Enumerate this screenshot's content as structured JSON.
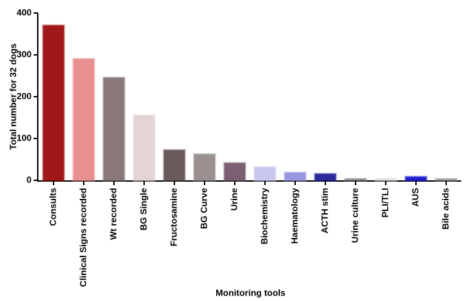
{
  "chart_data": {
    "type": "bar",
    "x_label": "Monitoring tools",
    "y_label": "Total number for 32 dogs",
    "categories": [
      "Consults",
      "Clinical Signs recorded",
      "Wt recorded",
      "BG Single",
      "Fructosamine",
      "BG Curve",
      "Urine",
      "Biochemistry",
      "Haematology",
      "ACTH stim",
      "Urine culture",
      "PLI/TLI",
      "AUS",
      "Bile acids"
    ],
    "values": [
      370,
      290,
      245,
      155,
      72,
      62,
      41,
      31,
      18,
      15,
      3,
      3,
      8,
      3
    ],
    "colors": [
      "#a01818",
      "#e89090",
      "#8a7878",
      "#e4d4d4",
      "#6a5a5a",
      "#9a9090",
      "#7a6070",
      "#c8c8f0",
      "#9898e0",
      "#2a2a9a",
      "#888888",
      "#dddddd",
      "#2020d0",
      "#999999"
    ],
    "ylim": [
      0,
      400
    ],
    "yticks": [
      0,
      100,
      200,
      300,
      400
    ]
  }
}
